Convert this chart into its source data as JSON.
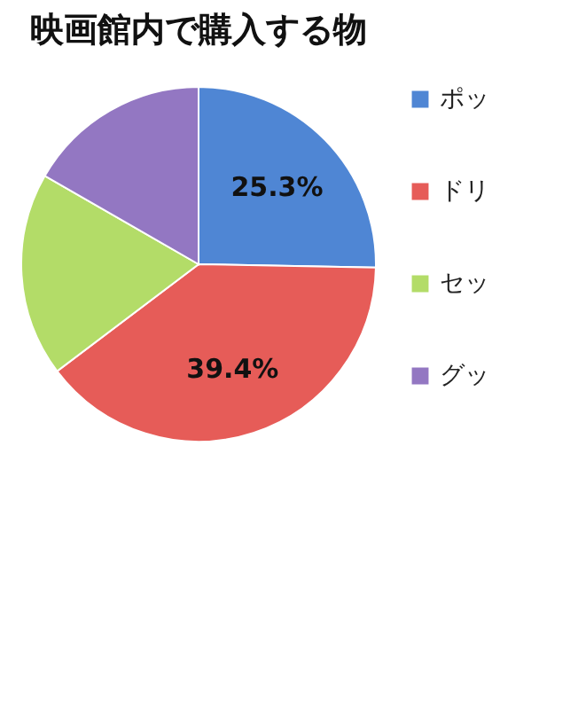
{
  "chart_data": {
    "type": "pie",
    "title": "映画館内で購入する物",
    "categories": [
      "ポッ",
      "ドリ",
      "セッ",
      "グッ"
    ],
    "values": [
      25.3,
      39.4,
      18.6,
      16.7
    ],
    "colors": [
      "#4f86d4",
      "#e65c58",
      "#b3dc68",
      "#9377c2"
    ],
    "value_labels": [
      "25.3%",
      "39.4%",
      null,
      null
    ],
    "legend": "right"
  }
}
